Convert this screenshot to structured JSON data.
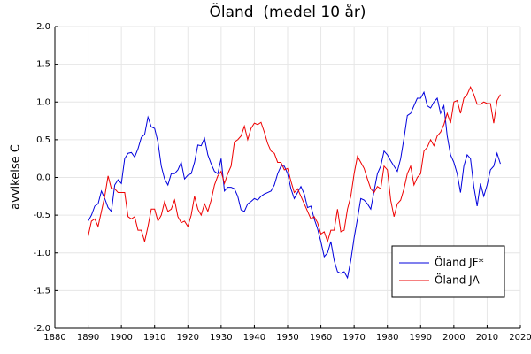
{
  "chart_data": {
    "type": "line",
    "title": "Öland  (medel 10 år)",
    "y_label": "avvikelse C",
    "x": [
      1890,
      1891,
      1892,
      1893,
      1894,
      1895,
      1896,
      1897,
      1898,
      1899,
      1900,
      1901,
      1902,
      1903,
      1904,
      1905,
      1906,
      1907,
      1908,
      1909,
      1910,
      1911,
      1912,
      1913,
      1914,
      1915,
      1916,
      1917,
      1918,
      1919,
      1920,
      1921,
      1922,
      1923,
      1924,
      1925,
      1926,
      1927,
      1928,
      1929,
      1930,
      1931,
      1932,
      1933,
      1934,
      1935,
      1936,
      1937,
      1938,
      1939,
      1940,
      1941,
      1942,
      1943,
      1944,
      1945,
      1946,
      1947,
      1948,
      1949,
      1950,
      1951,
      1952,
      1953,
      1954,
      1955,
      1956,
      1957,
      1958,
      1959,
      1960,
      1961,
      1962,
      1963,
      1964,
      1965,
      1966,
      1967,
      1968,
      1969,
      1970,
      1971,
      1972,
      1973,
      1974,
      1975,
      1976,
      1977,
      1978,
      1979,
      1980,
      1981,
      1982,
      1983,
      1984,
      1985,
      1986,
      1987,
      1988,
      1989,
      1990,
      1991,
      1992,
      1993,
      1994,
      1995,
      1996,
      1997,
      1998,
      1999,
      2000,
      2001,
      2002,
      2003,
      2004,
      2005,
      2006,
      2007,
      2008,
      2009,
      2010,
      2011,
      2012,
      2013,
      2014
    ],
    "series": [
      {
        "name": "Öland JF*",
        "color": "#0000dd",
        "values": [
          -0.58,
          -0.5,
          -0.38,
          -0.35,
          -0.18,
          -0.28,
          -0.4,
          -0.45,
          -0.1,
          -0.03,
          -0.08,
          0.25,
          0.32,
          0.33,
          0.27,
          0.38,
          0.53,
          0.57,
          0.8,
          0.67,
          0.65,
          0.47,
          0.15,
          -0.02,
          -0.1,
          0.05,
          0.05,
          0.1,
          0.2,
          -0.02,
          0.03,
          0.05,
          0.2,
          0.43,
          0.42,
          0.52,
          0.3,
          0.18,
          0.08,
          0.05,
          0.25,
          -0.18,
          -0.13,
          -0.13,
          -0.15,
          -0.25,
          -0.43,
          -0.45,
          -0.35,
          -0.32,
          -0.28,
          -0.3,
          -0.25,
          -0.22,
          -0.2,
          -0.18,
          -0.1,
          0.05,
          0.15,
          0.15,
          0.05,
          -0.15,
          -0.28,
          -0.2,
          -0.12,
          -0.22,
          -0.4,
          -0.38,
          -0.55,
          -0.68,
          -0.85,
          -1.05,
          -1.0,
          -0.85,
          -1.1,
          -1.25,
          -1.27,
          -1.25,
          -1.33,
          -1.1,
          -0.8,
          -0.55,
          -0.28,
          -0.3,
          -0.35,
          -0.42,
          -0.18,
          0.05,
          0.15,
          0.35,
          0.3,
          0.22,
          0.15,
          0.08,
          0.25,
          0.52,
          0.82,
          0.85,
          0.95,
          1.05,
          1.05,
          1.13,
          0.95,
          0.92,
          1.0,
          1.05,
          0.85,
          0.95,
          0.55,
          0.3,
          0.2,
          0.05,
          -0.2,
          0.15,
          0.3,
          0.25,
          -0.12,
          -0.38,
          -0.08,
          -0.25,
          -0.1,
          0.1,
          0.15,
          0.32,
          0.18
        ]
      },
      {
        "name": "Öland JA",
        "color": "#ee0000",
        "values": [
          -0.78,
          -0.58,
          -0.55,
          -0.65,
          -0.45,
          -0.25,
          0.02,
          -0.15,
          -0.15,
          -0.2,
          -0.2,
          -0.2,
          -0.52,
          -0.55,
          -0.52,
          -0.7,
          -0.7,
          -0.85,
          -0.65,
          -0.42,
          -0.42,
          -0.58,
          -0.5,
          -0.32,
          -0.45,
          -0.42,
          -0.3,
          -0.52,
          -0.6,
          -0.58,
          -0.65,
          -0.5,
          -0.25,
          -0.42,
          -0.5,
          -0.35,
          -0.45,
          -0.3,
          -0.1,
          0.02,
          0.08,
          -0.08,
          0.05,
          0.15,
          0.47,
          0.5,
          0.55,
          0.68,
          0.5,
          0.65,
          0.72,
          0.7,
          0.73,
          0.6,
          0.45,
          0.35,
          0.32,
          0.2,
          0.2,
          0.1,
          0.12,
          -0.05,
          -0.2,
          -0.15,
          -0.25,
          -0.35,
          -0.45,
          -0.55,
          -0.52,
          -0.6,
          -0.75,
          -0.72,
          -0.85,
          -0.7,
          -0.7,
          -0.42,
          -0.72,
          -0.7,
          -0.42,
          -0.25,
          0.05,
          0.28,
          0.2,
          0.12,
          -0.02,
          -0.15,
          -0.2,
          -0.12,
          -0.15,
          0.15,
          0.1,
          -0.3,
          -0.52,
          -0.35,
          -0.3,
          -0.15,
          0.05,
          0.15,
          -0.1,
          0.0,
          0.05,
          0.35,
          0.4,
          0.5,
          0.42,
          0.55,
          0.6,
          0.7,
          0.85,
          0.72,
          1.0,
          1.02,
          0.85,
          1.05,
          1.1,
          1.2,
          1.1,
          0.97,
          0.97,
          1.0,
          0.98,
          0.98,
          0.72,
          1.02,
          1.1
        ]
      }
    ],
    "xlim": [
      1880,
      2020
    ],
    "xticks": [
      1880,
      1890,
      1900,
      1910,
      1920,
      1930,
      1940,
      1950,
      1960,
      1970,
      1980,
      1990,
      2000,
      2010,
      2020
    ],
    "ylim": [
      -2,
      2
    ],
    "yticks": [
      {
        "value": -2,
        "label": "-2.0"
      },
      -1.5,
      {
        "value": -1,
        "label": "-1.0"
      },
      -0.5,
      {
        "value": 0,
        "label": "0.0"
      },
      0.5,
      {
        "value": 1,
        "label": "1.0"
      },
      1.5,
      {
        "value": 2,
        "label": "2.0"
      }
    ],
    "grid": true,
    "legend": "lower right"
  }
}
